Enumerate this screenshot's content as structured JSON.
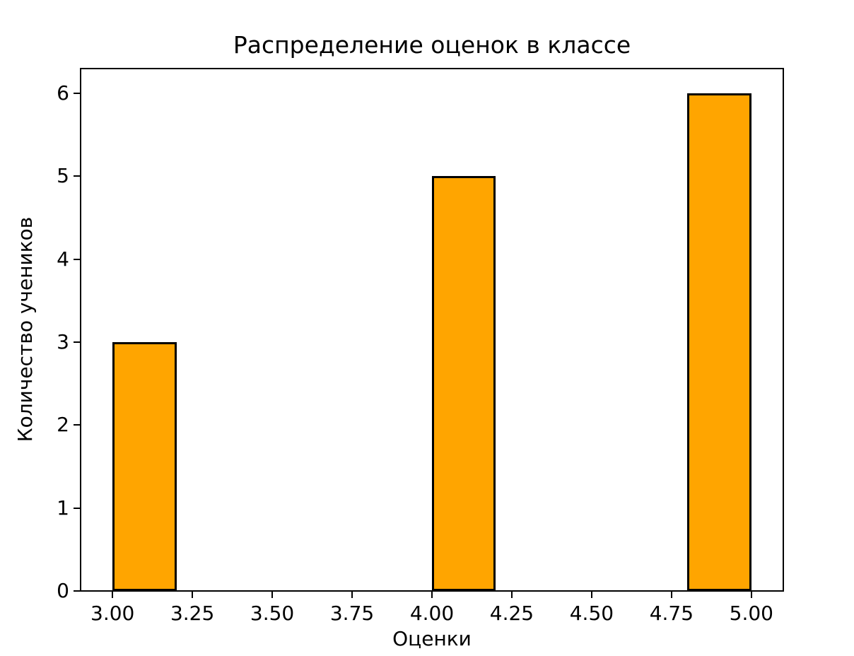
{
  "chart_data": {
    "type": "bar",
    "title": "Распределение оценок в классе",
    "xlabel": "Оценки",
    "ylabel": "Количество учеников",
    "bars": [
      {
        "x_start": 3.0,
        "x_end": 3.2,
        "count": 3
      },
      {
        "x_start": 4.0,
        "x_end": 4.2,
        "count": 5
      },
      {
        "x_start": 4.8,
        "x_end": 5.0,
        "count": 6
      }
    ],
    "categories": [
      "3.0",
      "4.0",
      "5.0"
    ],
    "values": [
      3,
      5,
      6
    ],
    "xlim": [
      2.9,
      5.1
    ],
    "ylim": [
      0,
      6.3
    ],
    "x_tick_labels": [
      "3.00",
      "3.25",
      "3.50",
      "3.75",
      "4.00",
      "4.25",
      "4.50",
      "4.75",
      "5.00"
    ],
    "x_tick_values": [
      3.0,
      3.25,
      3.5,
      3.75,
      4.0,
      4.25,
      4.5,
      4.75,
      5.0
    ],
    "y_tick_labels": [
      "0",
      "1",
      "2",
      "3",
      "4",
      "5",
      "6"
    ],
    "y_tick_values": [
      0,
      1,
      2,
      3,
      4,
      5,
      6
    ],
    "bar_color": "#FFA500",
    "bar_edge_color": "#000000",
    "spine_color": "#000000",
    "text_color": "#000000",
    "background_color": "#FFFFFF",
    "grid": false,
    "legend": "none"
  }
}
